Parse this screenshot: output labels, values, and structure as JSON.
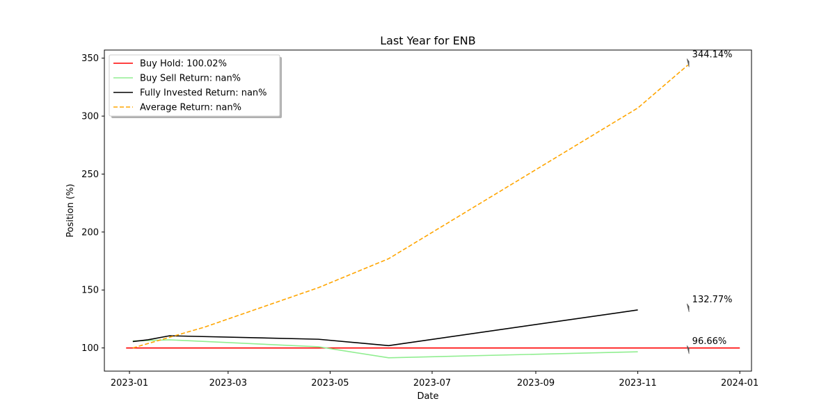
{
  "chart_data": {
    "type": "line",
    "title": "Last Year for ENB",
    "xlabel": "Date",
    "ylabel": "Position (%)",
    "xlim": [
      "2022-12-17",
      "2024-01-08"
    ],
    "ylim": [
      80,
      357
    ],
    "x_ticks": [
      "2023-01-01",
      "2023-03-01",
      "2023-05-01",
      "2023-07-01",
      "2023-09-01",
      "2023-11-01",
      "2024-01-01"
    ],
    "x_tick_labels": [
      "2023-01",
      "2023-03",
      "2023-05",
      "2023-07",
      "2023-09",
      "2023-11",
      "2024-01"
    ],
    "y_ticks": [
      100,
      150,
      200,
      250,
      300,
      350
    ],
    "y_tick_labels": [
      "100",
      "150",
      "200",
      "250",
      "300",
      "350"
    ],
    "legend_position": "top-left",
    "grid": false,
    "series": [
      {
        "name": "Buy Hold: 100.02%",
        "color": "#ff0000",
        "dash": "solid",
        "points": [
          [
            "2022-12-30",
            100
          ],
          [
            "2024-01-01",
            100
          ]
        ]
      },
      {
        "name": "Buy Sell Return: nan%",
        "color": "#90ee90",
        "dash": "solid",
        "points": [
          [
            "2023-01-03",
            106
          ],
          [
            "2023-01-25",
            107
          ],
          [
            "2023-04-24",
            101
          ],
          [
            "2023-06-05",
            91.5
          ],
          [
            "2023-11-01",
            96.7
          ]
        ]
      },
      {
        "name": "Fully Invested Return: nan%",
        "color": "#000000",
        "dash": "solid",
        "points": [
          [
            "2023-01-03",
            105.5
          ],
          [
            "2023-01-12",
            107
          ],
          [
            "2023-01-25",
            110.5
          ],
          [
            "2023-04-24",
            107.5
          ],
          [
            "2023-06-05",
            102
          ],
          [
            "2023-11-01",
            132.8
          ]
        ]
      },
      {
        "name": "Average Return: nan%",
        "color": "#ffa500",
        "dash": "dashed",
        "points": [
          [
            "2023-01-03",
            100
          ],
          [
            "2023-02-15",
            118
          ],
          [
            "2023-04-24",
            152
          ],
          [
            "2023-06-05",
            177
          ],
          [
            "2023-11-01",
            307
          ],
          [
            "2023-12-01",
            344.1
          ]
        ]
      }
    ],
    "annotations": [
      {
        "text": "344.14%",
        "x": "2023-12-01",
        "y": 344.14,
        "arrow_color": "#555555"
      },
      {
        "text": "132.77%",
        "x": "2023-12-01",
        "y": 132.77,
        "arrow_color": "#555555"
      },
      {
        "text": "96.66%",
        "x": "2023-12-01",
        "y": 96.66,
        "arrow_color": "#555555"
      }
    ]
  }
}
